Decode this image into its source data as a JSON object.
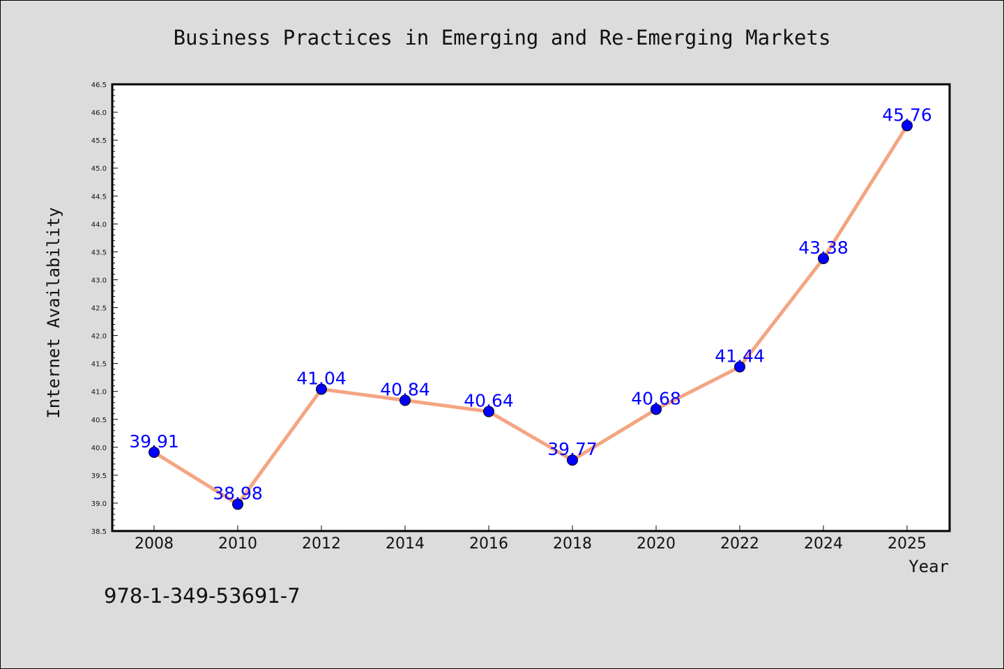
{
  "chart_data": {
    "type": "line",
    "title": "Business Practices in Emerging and Re-Emerging Markets",
    "xlabel": "Year",
    "ylabel": "Internet Availability",
    "categories": [
      "2008",
      "2010",
      "2012",
      "2014",
      "2016",
      "2018",
      "2020",
      "2022",
      "2024",
      "2025"
    ],
    "series": [
      {
        "values": [
          39.91,
          38.98,
          41.04,
          40.84,
          40.64,
          39.77,
          40.68,
          41.44,
          43.38,
          45.76
        ],
        "color": "#f4a582",
        "marker_color": "#0000ff"
      }
    ],
    "data_labels": [
      "39.91",
      "38.98",
      "41.04",
      "40.84",
      "40.64",
      "39.77",
      "40.68",
      "41.44",
      "43.38",
      "45.76"
    ],
    "ylim": [
      38.5,
      46.5
    ],
    "y_ticks": [
      "38.5",
      "39.0",
      "39.5",
      "40.0",
      "40.5",
      "41.0",
      "41.5",
      "42.0",
      "42.5",
      "43.0",
      "43.5",
      "44.0",
      "44.5",
      "45.0",
      "45.5",
      "46.0",
      "46.5"
    ],
    "grid": false,
    "legend": "none",
    "background_color": "#dcdcdc",
    "plot_background_color": "#ffffff",
    "label_color": "#0000ff"
  },
  "footer": {
    "isbn": "978-1-349-53691-7"
  }
}
